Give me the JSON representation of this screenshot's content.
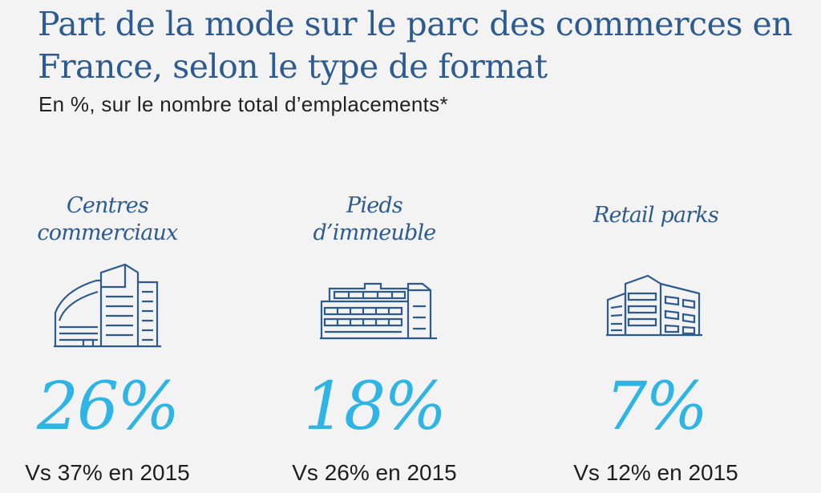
{
  "title": "Part de la mode sur le parc des commerces en France, selon le type de format",
  "subtitle": "En %, sur le nombre total d’emplacements*",
  "colors": {
    "title": "#2d5b91",
    "value": "#2fb4e6",
    "icon": "#2d5b91",
    "background": "#f3f3f3"
  },
  "chart_data": {
    "type": "table",
    "categories": [
      "Centres commerciaux",
      "Pieds d’immeuble",
      "Retail parks"
    ],
    "values": [
      26,
      18,
      7
    ],
    "unit": "%",
    "comparison_year": 2015,
    "comparison_values": [
      37,
      26,
      12
    ]
  },
  "items": [
    {
      "label_lines": [
        "Centres",
        "commerciaux"
      ],
      "icon": "shopping-center-building-icon",
      "value_text": "26%",
      "comparison_text": "Vs 37% en 2015"
    },
    {
      "label_lines": [
        "Pieds",
        "d’immeuble"
      ],
      "icon": "street-building-icon",
      "value_text": "18%",
      "comparison_text": "Vs 26% en 2015"
    },
    {
      "label_lines": [
        "Retail parks"
      ],
      "icon": "retail-park-building-icon",
      "value_text": "7%",
      "comparison_text": "Vs 12% en 2015"
    }
  ]
}
